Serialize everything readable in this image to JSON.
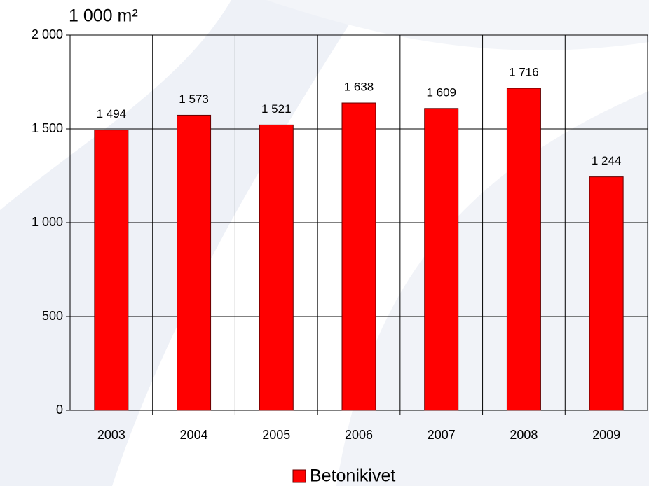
{
  "chart_data": {
    "type": "bar",
    "y_axis_label": "1 000 m²",
    "categories": [
      "2003",
      "2004",
      "2005",
      "2006",
      "2007",
      "2008",
      "2009"
    ],
    "series": [
      {
        "name": "Betonikivet",
        "color": "#ff0000",
        "values": [
          1494,
          1573,
          1521,
          1638,
          1609,
          1716,
          1244
        ],
        "value_labels": [
          "1 494",
          "1 573",
          "1 521",
          "1 638",
          "1 609",
          "1 716",
          "1 244"
        ]
      }
    ],
    "ylim": [
      0,
      2000
    ],
    "yticks": [
      0,
      500,
      {
        "value": 1000,
        "label": "1 000"
      },
      {
        "value": 1500,
        "label": "1 500"
      },
      {
        "value": 2000,
        "label": "2 000"
      }
    ],
    "grid": true,
    "legend": "bottom"
  }
}
